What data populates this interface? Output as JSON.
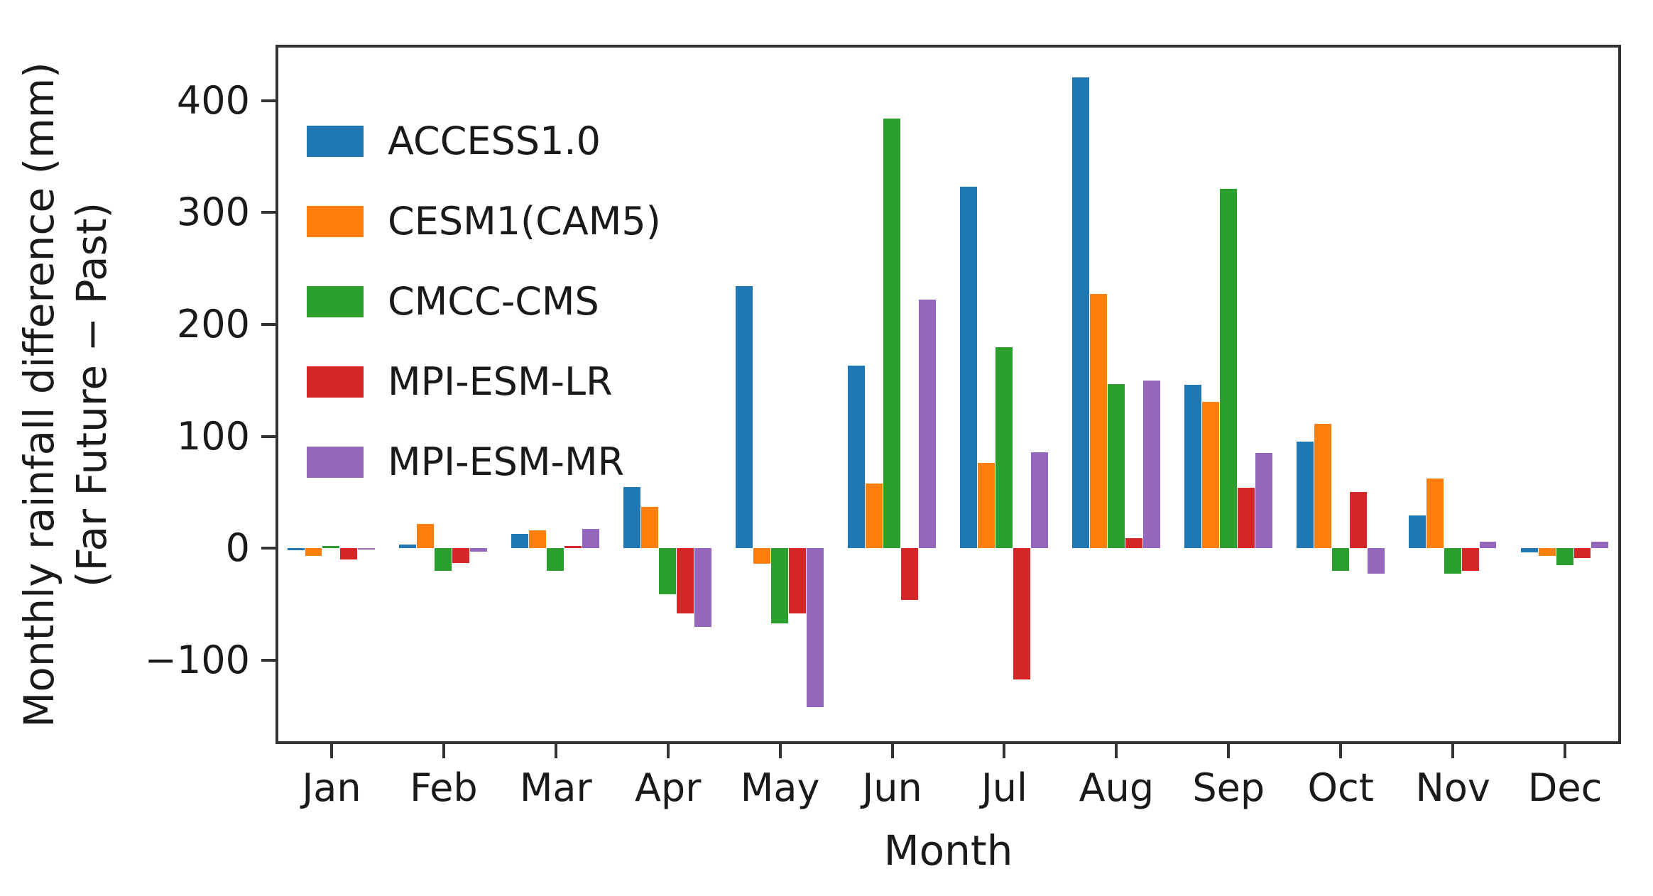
{
  "figure": {
    "background": "#ffffff",
    "axis_color": "#333333",
    "text_color": "#1a1a1a"
  },
  "chart_data": {
    "type": "bar",
    "title": "",
    "xlabel": "Month",
    "ylabel": "Monthly rainfall difference (mm)",
    "ylabel_line2": "(Far Future − Past)",
    "categories": [
      "Jan",
      "Feb",
      "Mar",
      "Apr",
      "May",
      "Jun",
      "Jul",
      "Aug",
      "Sep",
      "Oct",
      "Nov",
      "Dec"
    ],
    "yticks": [
      400,
      300,
      200,
      100,
      0,
      -100
    ],
    "ylim": [
      -175,
      450
    ],
    "grid": false,
    "legend_position": "upper left",
    "series": [
      {
        "name": "ACCESS1.0",
        "color": "#1f77b4",
        "values": [
          -2,
          3,
          13,
          55,
          234,
          163,
          323,
          421,
          146,
          95,
          29,
          -4
        ]
      },
      {
        "name": "CESM1(CAM5)",
        "color": "#ff7f0e",
        "values": [
          -7,
          22,
          16,
          37,
          -14,
          58,
          76,
          227,
          131,
          111,
          62,
          -7
        ]
      },
      {
        "name": "CMCC-CMS",
        "color": "#2ca02c",
        "values": [
          2,
          -20,
          -20,
          -41,
          -67,
          384,
          180,
          147,
          321,
          -20,
          -23,
          -15
        ]
      },
      {
        "name": "MPI-ESM-LR",
        "color": "#d62728",
        "values": [
          -10,
          -13,
          2,
          -58,
          -58,
          -46,
          -117,
          9,
          54,
          50,
          -20,
          -9
        ]
      },
      {
        "name": "MPI-ESM-MR",
        "color": "#9467bd",
        "values": [
          -1,
          -3,
          17,
          -70,
          -142,
          222,
          86,
          150,
          85,
          -23,
          6,
          6
        ]
      }
    ]
  }
}
